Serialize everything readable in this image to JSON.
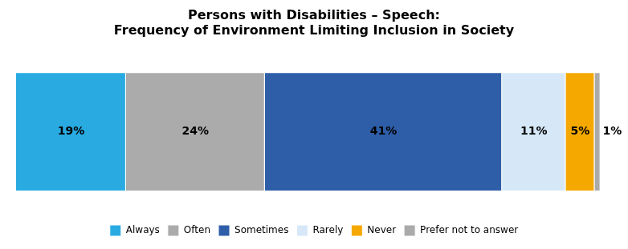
{
  "chart_data": {
    "type": "bar",
    "orientation": "horizontal",
    "stacked": true,
    "title": "Persons with Disabilities – Speech:\nFrequency of Environment Limiting Inclusion in Society",
    "categories": [
      null
    ],
    "series": [
      {
        "name": "Always",
        "color": "#29ABE2",
        "values": [
          19
        ],
        "value_labels": [
          "19%"
        ]
      },
      {
        "name": "Often",
        "color": "#ABABAB",
        "values": [
          24
        ],
        "value_labels": [
          "24%"
        ]
      },
      {
        "name": "Sometimes",
        "color": "#2E5EA8",
        "values": [
          41
        ],
        "value_labels": [
          "41%"
        ]
      },
      {
        "name": "Rarely",
        "color": "#D6E8F7",
        "values": [
          11
        ],
        "value_labels": [
          "11%"
        ]
      },
      {
        "name": "Never",
        "color": "#F5A800",
        "values": [
          5
        ],
        "value_labels": [
          "5%"
        ]
      },
      {
        "name": "Prefer not to answer",
        "color": "#AAAAAA",
        "values": [
          1
        ],
        "value_labels": [
          "1%"
        ]
      }
    ],
    "xlim": [
      0,
      103
    ],
    "data_labels": true,
    "tick_labels": false,
    "grid": false,
    "legend": "bottom"
  }
}
